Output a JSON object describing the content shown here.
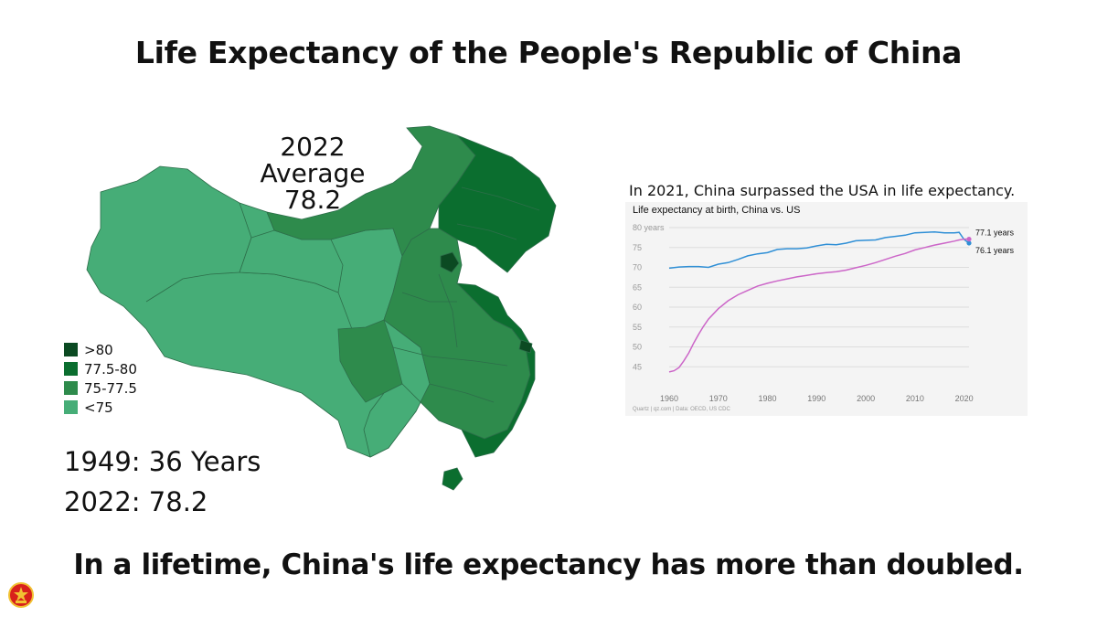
{
  "title": "Life Expectancy of the People's Republic of China",
  "footer": "In a lifetime, China's life expectancy has more than doubled.",
  "map": {
    "average_year": "2022",
    "average_label": "Average",
    "average_value": "78.2",
    "legend": [
      {
        "label": ">80",
        "color": "#0b4a22"
      },
      {
        "label": "77.5-80",
        "color": "#0b6e2f"
      },
      {
        "label": "75-77.5",
        "color": "#2e8b4c"
      },
      {
        "label": "<75",
        "color": "#46ad77"
      }
    ]
  },
  "stats": [
    "1949: 36 Years",
    "2022: 78.2"
  ],
  "chart_caption": "In 2021, China surpassed the USA in life expectancy.",
  "chart_title": "Life expectancy at birth, China vs. US",
  "chart_source": "Quartz | qz.com | Data: OECD, US CDC",
  "chart_data": {
    "type": "line",
    "title": "Life expectancy at birth, China vs. US",
    "ylabel": "",
    "xlabel": "",
    "xlim": [
      1960,
      2021
    ],
    "ylim": [
      40,
      80
    ],
    "x_ticks": [
      1960,
      1970,
      1980,
      1990,
      2000,
      2010,
      2020
    ],
    "y_ticks": [
      45,
      50,
      55,
      60,
      65,
      70,
      75,
      80
    ],
    "y_tick_labels": [
      "45",
      "50",
      "55",
      "60",
      "65",
      "70",
      "75",
      "80 years"
    ],
    "grid": "horizontal",
    "series": [
      {
        "color": "#2f8fd6",
        "end_label": "76.1 years",
        "points": [
          [
            1960,
            69.8
          ],
          [
            1962,
            70.1
          ],
          [
            1964,
            70.2
          ],
          [
            1966,
            70.2
          ],
          [
            1968,
            70.0
          ],
          [
            1970,
            70.8
          ],
          [
            1972,
            71.2
          ],
          [
            1974,
            72.0
          ],
          [
            1976,
            72.9
          ],
          [
            1978,
            73.4
          ],
          [
            1980,
            73.7
          ],
          [
            1982,
            74.5
          ],
          [
            1984,
            74.7
          ],
          [
            1986,
            74.7
          ],
          [
            1988,
            74.9
          ],
          [
            1990,
            75.4
          ],
          [
            1992,
            75.8
          ],
          [
            1994,
            75.7
          ],
          [
            1996,
            76.1
          ],
          [
            1998,
            76.7
          ],
          [
            2000,
            76.8
          ],
          [
            2002,
            76.9
          ],
          [
            2004,
            77.5
          ],
          [
            2006,
            77.8
          ],
          [
            2008,
            78.1
          ],
          [
            2010,
            78.7
          ],
          [
            2012,
            78.8
          ],
          [
            2014,
            78.9
          ],
          [
            2016,
            78.7
          ],
          [
            2018,
            78.7
          ],
          [
            2019,
            78.8
          ],
          [
            2020,
            77.0
          ],
          [
            2021,
            76.1
          ]
        ]
      },
      {
        "color": "#cc66c8",
        "end_label": "77.1 years",
        "points": [
          [
            1960,
            43.7
          ],
          [
            1961,
            44.0
          ],
          [
            1962,
            44.8
          ],
          [
            1963,
            46.5
          ],
          [
            1964,
            48.5
          ],
          [
            1965,
            51.0
          ],
          [
            1966,
            53.2
          ],
          [
            1967,
            55.2
          ],
          [
            1968,
            57.0
          ],
          [
            1970,
            59.6
          ],
          [
            1972,
            61.6
          ],
          [
            1974,
            63.1
          ],
          [
            1976,
            64.2
          ],
          [
            1978,
            65.3
          ],
          [
            1980,
            66.0
          ],
          [
            1982,
            66.6
          ],
          [
            1984,
            67.1
          ],
          [
            1986,
            67.6
          ],
          [
            1988,
            68.0
          ],
          [
            1990,
            68.4
          ],
          [
            1992,
            68.7
          ],
          [
            1994,
            68.9
          ],
          [
            1996,
            69.3
          ],
          [
            1998,
            69.9
          ],
          [
            2000,
            70.5
          ],
          [
            2002,
            71.2
          ],
          [
            2004,
            72.0
          ],
          [
            2006,
            72.8
          ],
          [
            2008,
            73.5
          ],
          [
            2010,
            74.4
          ],
          [
            2012,
            75.0
          ],
          [
            2014,
            75.6
          ],
          [
            2016,
            76.1
          ],
          [
            2018,
            76.6
          ],
          [
            2019,
            76.9
          ],
          [
            2020,
            77.1
          ],
          [
            2021,
            77.1
          ]
        ]
      }
    ]
  }
}
